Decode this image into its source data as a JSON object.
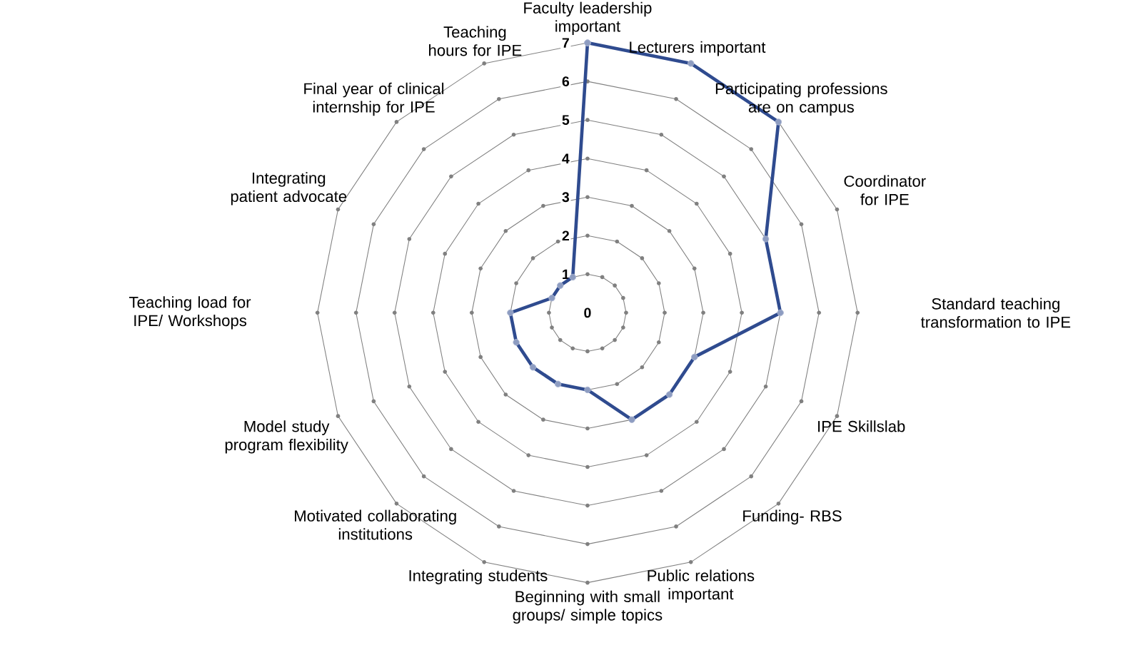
{
  "chart_data": {
    "type": "radar",
    "categories": [
      "Faculty leadership important",
      "Lecturers important",
      "Participating professions are on campus",
      "Coordinator for IPE",
      "Standard teaching transformation to IPE",
      "IPE Skillslab",
      "Funding- RBS",
      "Public relations important",
      "Beginning with small groups/ simple topics",
      "Integrating students",
      "Motivated collaborating institutions",
      "Model study program flexibility",
      "Teaching load for IPE/ Workshops",
      "Integrating patient advocate",
      "Final year of clinical internship for IPE",
      "Teaching hours for IPE"
    ],
    "series": [
      {
        "color": "#2f4b8f",
        "values": [
          7,
          7,
          7,
          5,
          5,
          3,
          3,
          3,
          2,
          2,
          2,
          2,
          2,
          1,
          1,
          1
        ]
      }
    ],
    "ylim": [
      0,
      7
    ],
    "yticks": [
      0,
      1,
      2,
      3,
      4,
      5,
      6,
      7
    ],
    "grid": true,
    "marker": "circle"
  }
}
